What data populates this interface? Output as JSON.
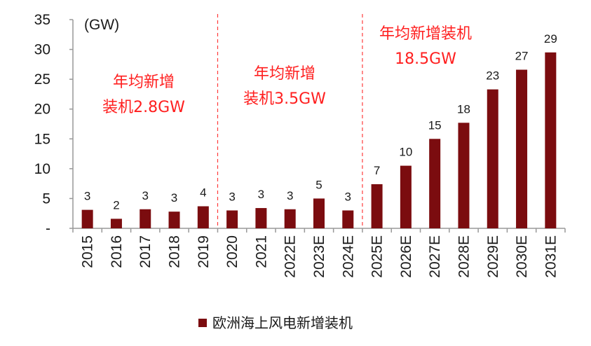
{
  "colors": {
    "bar": "#7b0c0f",
    "annotation": "#ff1f1f",
    "divider": "#ff3b3b",
    "axis": "#999999",
    "text": "#1a1a1a"
  },
  "chart_data": {
    "type": "bar",
    "unit_label": "(GW)",
    "categories": [
      "2015",
      "2016",
      "2017",
      "2018",
      "2019",
      "2020",
      "2021",
      "2022E",
      "2023E",
      "2024E",
      "2025E",
      "2026E",
      "2027E",
      "2028E",
      "2029E",
      "2030E",
      "2031E"
    ],
    "values": [
      3.1,
      1.6,
      3.2,
      2.8,
      3.7,
      3.0,
      3.4,
      3.2,
      5.0,
      3.0,
      7.4,
      10.5,
      15.0,
      17.7,
      23.3,
      26.6,
      29.5
    ],
    "data_labels": [
      "3",
      "2",
      "3",
      "3",
      "4",
      "3",
      "3",
      "3",
      "5",
      "3",
      "7",
      "10",
      "15",
      "18",
      "23",
      "27",
      "29"
    ],
    "ylim": [
      0,
      35
    ],
    "yticks": [
      "-",
      "5",
      "10",
      "15",
      "20",
      "25",
      "30",
      "35"
    ],
    "legend_position": "bottom",
    "series": [
      {
        "name": "欧洲海上风电新增装机"
      }
    ],
    "dividers_after_index": [
      4,
      9
    ],
    "annotations": [
      {
        "lines": [
          "年均新增",
          "装机2.8GW"
        ]
      },
      {
        "lines": [
          "年均新增",
          "装机3.5GW"
        ]
      },
      {
        "lines": [
          "年均新增装机",
          "18.5GW"
        ]
      }
    ]
  }
}
